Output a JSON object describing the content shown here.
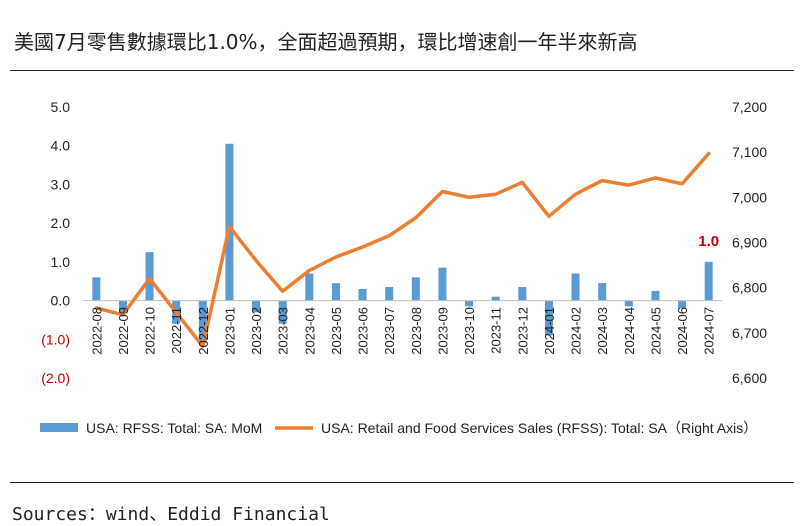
{
  "title": "美國7月零售數據環比1.0%，全面超過預期，環比增速創一年半來新高",
  "source": "Sources：wind、Eddid Financial",
  "chart_data": {
    "type": "bar+line",
    "categories": [
      "2022-08",
      "2022-09",
      "2022-10",
      "2022-11",
      "2022-12",
      "2023-01",
      "2023-02",
      "2023-03",
      "2023-04",
      "2023-05",
      "2023-06",
      "2023-07",
      "2023-08",
      "2023-09",
      "2023-10",
      "2023-11",
      "2023-12",
      "2024-01",
      "2024-02",
      "2024-03",
      "2024-04",
      "2024-05",
      "2024-06",
      "2024-07"
    ],
    "series": [
      {
        "name": "USA: RFSS: Total: SA: MoM",
        "type": "bar",
        "axis": "left",
        "color": "#5B9BD5",
        "values": [
          0.6,
          -0.3,
          1.25,
          -0.6,
          -1.1,
          4.05,
          -0.3,
          -0.6,
          0.7,
          0.45,
          0.3,
          0.35,
          0.6,
          0.85,
          -0.15,
          0.1,
          0.35,
          -0.9,
          0.7,
          0.45,
          -0.15,
          0.25,
          -0.2,
          1.0
        ]
      },
      {
        "name": "USA: Retail and Food Services Sales (RFSS): Total: SA（Right Axis）",
        "type": "line",
        "axis": "right",
        "color": "#ED7D31",
        "values": [
          6755,
          6740,
          6820,
          6745,
          6670,
          6935,
          6860,
          6792,
          6838,
          6868,
          6890,
          6915,
          6955,
          7013,
          7000,
          7007,
          7033,
          6958,
          7007,
          7037,
          7027,
          7043,
          7030,
          7097
        ]
      }
    ],
    "left_axis": {
      "ylim": [
        -2.0,
        5.0
      ],
      "ticks": [
        5.0,
        4.0,
        3.0,
        2.0,
        1.0,
        0.0,
        -1.0,
        -2.0
      ],
      "tick_labels": [
        "5.0",
        "4.0",
        "3.0",
        "2.0",
        "1.0",
        "0.0",
        "(1.0)",
        "(2.0)"
      ],
      "negative_color": "#C00000"
    },
    "right_axis": {
      "ylim": [
        6600,
        7200
      ],
      "ticks": [
        7200,
        7100,
        7000,
        6900,
        6800,
        6700,
        6600
      ],
      "tick_labels": [
        "7,200",
        "7,100",
        "7,000",
        "6,900",
        "6,800",
        "6,700",
        "6,600"
      ]
    },
    "annotation": {
      "text": "1.0",
      "category": "2024-07",
      "color": "#C00000"
    },
    "grid": false,
    "legend_position": "bottom"
  }
}
